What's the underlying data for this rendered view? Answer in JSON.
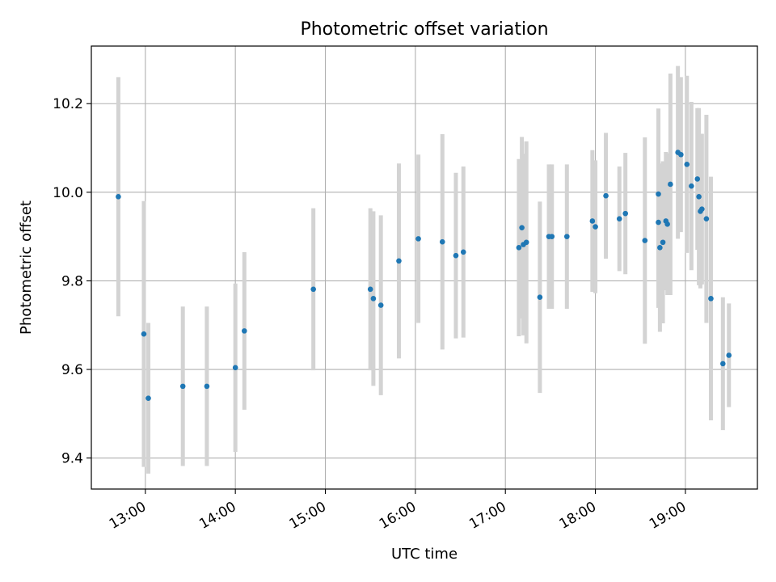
{
  "chart_data": {
    "type": "scatter",
    "title": "Photometric offset variation",
    "xlabel": "UTC time",
    "ylabel": "Photometric offset",
    "xlim": [
      "12:24",
      "19:48"
    ],
    "ylim": [
      9.33,
      10.33
    ],
    "grid": true,
    "x_ticks": [
      "13:00",
      "14:00",
      "15:00",
      "16:00",
      "17:00",
      "18:00",
      "19:00"
    ],
    "y_ticks": [
      "9.4",
      "9.6",
      "9.8",
      "10.0",
      "10.2"
    ],
    "colors": {
      "point": "#1f77b4",
      "errorbar": "#d3d3d3",
      "grid": "#b0b0b0"
    },
    "points": [
      {
        "x": "12:42",
        "y": 9.99,
        "err": 0.27
      },
      {
        "x": "12:59",
        "y": 9.68,
        "err": 0.3
      },
      {
        "x": "13:02",
        "y": 9.535,
        "err": 0.17
      },
      {
        "x": "13:25",
        "y": 9.562,
        "err": 0.18
      },
      {
        "x": "13:41",
        "y": 9.562,
        "err": 0.18
      },
      {
        "x": "14:00",
        "y": 9.604,
        "err": 0.19
      },
      {
        "x": "14:06",
        "y": 9.687,
        "err": 0.178
      },
      {
        "x": "14:52",
        "y": 9.781,
        "err": 0.183
      },
      {
        "x": "15:30",
        "y": 9.781,
        "err": 0.183
      },
      {
        "x": "15:32",
        "y": 9.76,
        "err": 0.197
      },
      {
        "x": "15:37",
        "y": 9.745,
        "err": 0.203
      },
      {
        "x": "15:49",
        "y": 9.845,
        "err": 0.22
      },
      {
        "x": "16:02",
        "y": 9.895,
        "err": 0.19
      },
      {
        "x": "16:18",
        "y": 9.888,
        "err": 0.243
      },
      {
        "x": "16:27",
        "y": 9.857,
        "err": 0.187
      },
      {
        "x": "16:32",
        "y": 9.865,
        "err": 0.193
      },
      {
        "x": "17:09",
        "y": 9.875,
        "err": 0.2
      },
      {
        "x": "17:11",
        "y": 9.92,
        "err": 0.205
      },
      {
        "x": "17:12",
        "y": 9.882,
        "err": 0.205
      },
      {
        "x": "17:14",
        "y": 9.887,
        "err": 0.228
      },
      {
        "x": "17:23",
        "y": 9.763,
        "err": 0.216
      },
      {
        "x": "17:29",
        "y": 9.9,
        "err": 0.163
      },
      {
        "x": "17:31",
        "y": 9.9,
        "err": 0.163
      },
      {
        "x": "17:41",
        "y": 9.9,
        "err": 0.163
      },
      {
        "x": "17:58",
        "y": 9.935,
        "err": 0.16
      },
      {
        "x": "18:00",
        "y": 9.922,
        "err": 0.15
      },
      {
        "x": "18:07",
        "y": 9.992,
        "err": 0.142
      },
      {
        "x": "18:16",
        "y": 9.94,
        "err": 0.118
      },
      {
        "x": "18:20",
        "y": 9.952,
        "err": 0.137
      },
      {
        "x": "18:33",
        "y": 9.891,
        "err": 0.233
      },
      {
        "x": "18:42",
        "y": 9.996,
        "err": 0.193
      },
      {
        "x": "18:42",
        "y": 9.932,
        "err": 0.193
      },
      {
        "x": "18:43",
        "y": 9.875,
        "err": 0.19
      },
      {
        "x": "18:45",
        "y": 9.887,
        "err": 0.183
      },
      {
        "x": "18:47",
        "y": 9.935,
        "err": 0.156
      },
      {
        "x": "18:48",
        "y": 9.928,
        "err": 0.16
      },
      {
        "x": "18:50",
        "y": 10.018,
        "err": 0.25
      },
      {
        "x": "18:55",
        "y": 10.09,
        "err": 0.195
      },
      {
        "x": "18:57",
        "y": 10.085,
        "err": 0.175
      },
      {
        "x": "19:01",
        "y": 10.063,
        "err": 0.2
      },
      {
        "x": "19:04",
        "y": 10.014,
        "err": 0.19
      },
      {
        "x": "19:08",
        "y": 10.03,
        "err": 0.16
      },
      {
        "x": "19:09",
        "y": 9.99,
        "err": 0.2
      },
      {
        "x": "19:10",
        "y": 9.957,
        "err": 0.174
      },
      {
        "x": "19:11",
        "y": 9.962,
        "err": 0.17
      },
      {
        "x": "19:14",
        "y": 9.94,
        "err": 0.235
      },
      {
        "x": "19:17",
        "y": 9.76,
        "err": 0.275
      },
      {
        "x": "19:25",
        "y": 9.613,
        "err": 0.15
      },
      {
        "x": "19:29",
        "y": 9.632,
        "err": 0.117
      }
    ]
  }
}
